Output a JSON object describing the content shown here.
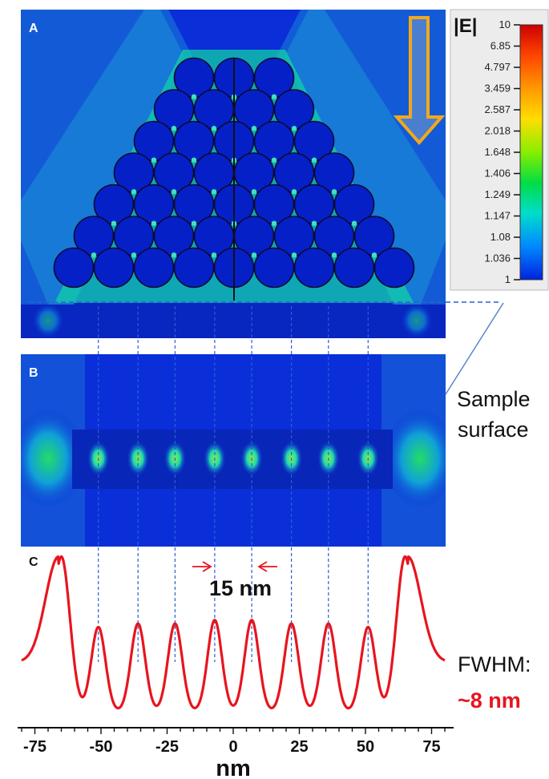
{
  "panels": {
    "a_label": "A",
    "b_label": "B",
    "c_label": "C"
  },
  "colorbar": {
    "title": "|E|",
    "ticks": [
      "10",
      "6.85",
      "4.797",
      "3.459",
      "2.587",
      "2.018",
      "1.648",
      "1.406",
      "1.249",
      "1.147",
      "1.08",
      "1.036",
      "1"
    ],
    "colors": [
      "#cc0000",
      "#ff4400",
      "#ff9900",
      "#ffdd00",
      "#88ee00",
      "#00dd44",
      "#00ddcc",
      "#0088ff",
      "#0022dd"
    ]
  },
  "annotations": {
    "sample_surface_line1": "Sample",
    "sample_surface_line2": "surface",
    "spacing": "15 nm",
    "fwhm_label": "FWHM:",
    "fwhm_value": "~8 nm"
  },
  "colors": {
    "background_field": "#0a2fd8",
    "sphere": "#0620c8",
    "profile_line": "#e8141e",
    "guide_line": "#2a5fd6",
    "arrow_outline": "#f2a81c",
    "arrow_fill": "#4a7fd0"
  },
  "chart_data": {
    "type": "line",
    "xlabel": "nm",
    "ylabel": "",
    "xlim": [
      -80,
      80
    ],
    "x_ticks": [
      -75,
      -50,
      -25,
      0,
      25,
      50,
      75
    ],
    "peaks_nm": [
      -65,
      -51,
      -36,
      -22,
      -7,
      7,
      22,
      36,
      51,
      65
    ],
    "peak_relative_height": [
      0.88,
      0.48,
      0.5,
      0.5,
      0.52,
      0.52,
      0.5,
      0.5,
      0.48,
      0.88
    ],
    "series": [
      {
        "x": [
          -80,
          -76,
          -72,
          -68,
          -65,
          -62,
          -58,
          -55,
          -51,
          -47,
          -44,
          -40,
          -36,
          -32,
          -29,
          -25,
          -22,
          -18,
          -15,
          -11,
          -7,
          -3,
          0,
          3,
          7,
          11,
          15,
          18,
          22,
          25,
          29,
          32,
          36,
          40,
          44,
          47,
          51,
          55,
          58,
          62,
          65,
          68,
          72,
          76,
          80
        ],
        "values": [
          0.28,
          0.33,
          0.48,
          0.8,
          0.88,
          0.62,
          0.05,
          0.02,
          0.48,
          0.02,
          0.0,
          0.03,
          0.5,
          0.03,
          0.04,
          0.03,
          0.5,
          0.03,
          0.05,
          0.04,
          0.52,
          0.06,
          0.0,
          0.06,
          0.52,
          0.04,
          0.05,
          0.03,
          0.5,
          0.03,
          0.04,
          0.03,
          0.5,
          0.03,
          0.0,
          0.02,
          0.48,
          0.02,
          0.05,
          0.62,
          0.88,
          0.8,
          0.48,
          0.33,
          0.28
        ]
      }
    ]
  }
}
